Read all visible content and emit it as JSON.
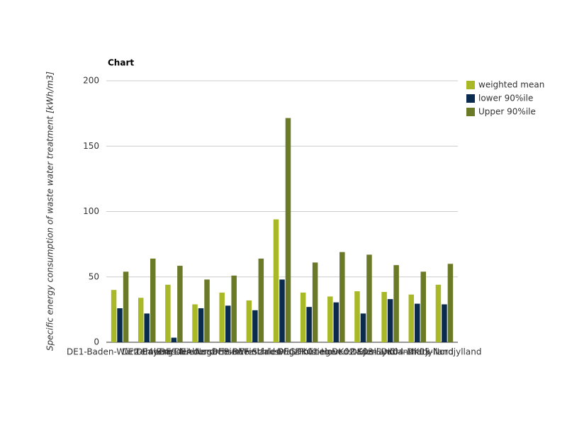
{
  "chart_data": {
    "type": "bar",
    "title": "Chart",
    "y_label": "Specific energy consumption of waste water treatment [kWh/m3]",
    "categories": [
      "DE1-Baden-Württemberg",
      "DE2-Bayern",
      "DE4-Brandenburg",
      "DE9-Niedersachsen",
      "DEA-Nordrhein-Westfalen",
      "DEB-Rheinland-Pfalz",
      "DEF-Schleswig-Holstein",
      "DEG-Thüringen",
      "DK01-Hovedstaden",
      "DK02-Sjælland",
      "DK03-Syddanmark",
      "DK04-Midtjylland",
      "DK05-Nordjylland"
    ],
    "series": [
      {
        "name": "weighted mean",
        "color": "#a8b826",
        "values": [
          40,
          34,
          44,
          29,
          38,
          32,
          94,
          38,
          35,
          39,
          38.5,
          36.5,
          44
        ]
      },
      {
        "name": "lower 90%ile",
        "color": "#0a2b4e",
        "values": [
          26,
          22,
          3.5,
          26,
          28,
          24.5,
          48,
          27,
          30.5,
          22,
          33,
          29.5,
          29
        ]
      },
      {
        "name": "Upper 90%ile",
        "color": "#6b7a27",
        "values": [
          54,
          64,
          58.5,
          48,
          51,
          64,
          171.5,
          61,
          69,
          67,
          59,
          54,
          60
        ]
      }
    ],
    "ylim": [
      0,
      200
    ],
    "yticks": [
      0,
      50,
      100,
      150,
      200
    ],
    "grid": true,
    "legend": "right"
  }
}
